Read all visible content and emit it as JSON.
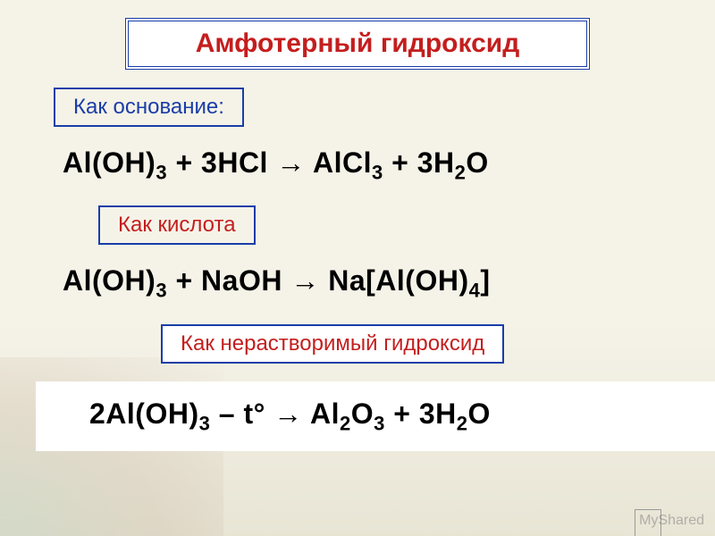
{
  "title": "Амфотерный гидроксид",
  "as_base": {
    "label": "Как основание:",
    "eq_lhs1": "Al(OH)",
    "eq_sub1": "3",
    "eq_plus1": " + 3HCl ",
    "eq_arrow": "→",
    "eq_rhs1": " AlCl",
    "eq_sub2": "3",
    "eq_plus2": " + 3H",
    "eq_sub3": "2",
    "eq_rhs2": "O"
  },
  "as_acid": {
    "label": "Как кислота",
    "eq_lhs1": "Al(OH)",
    "eq_sub1": "3",
    "eq_plus1": " + NaOH ",
    "eq_arrow": "→",
    "eq_rhs1": " Na[Al(OH)",
    "eq_sub2": "4",
    "eq_rhs2": "]"
  },
  "insoluble": {
    "label": "Как нерастворимый гидроксид",
    "eq_lhs1": "2Al(OH)",
    "eq_sub1": "3",
    "eq_cond": "   – t° ",
    "eq_arrow": "→",
    "eq_rhs1": " Al",
    "eq_sub2": "2",
    "eq_rhs2": "O",
    "eq_sub3": "3",
    "eq_plus2": " + 3H",
    "eq_sub4": "2",
    "eq_rhs3": "O"
  },
  "watermark": "MyShared",
  "colors": {
    "title_text": "#c41e1e",
    "title_border": "#1a3da8",
    "label_blue": "#1a3da8",
    "label_red": "#c41e1e",
    "eq_text": "#000000",
    "bg": "#f5f3e8",
    "highlight_bg": "#ffffff"
  },
  "fontsizes": {
    "title": 30,
    "label": 24,
    "equation": 32,
    "sub": 22
  }
}
